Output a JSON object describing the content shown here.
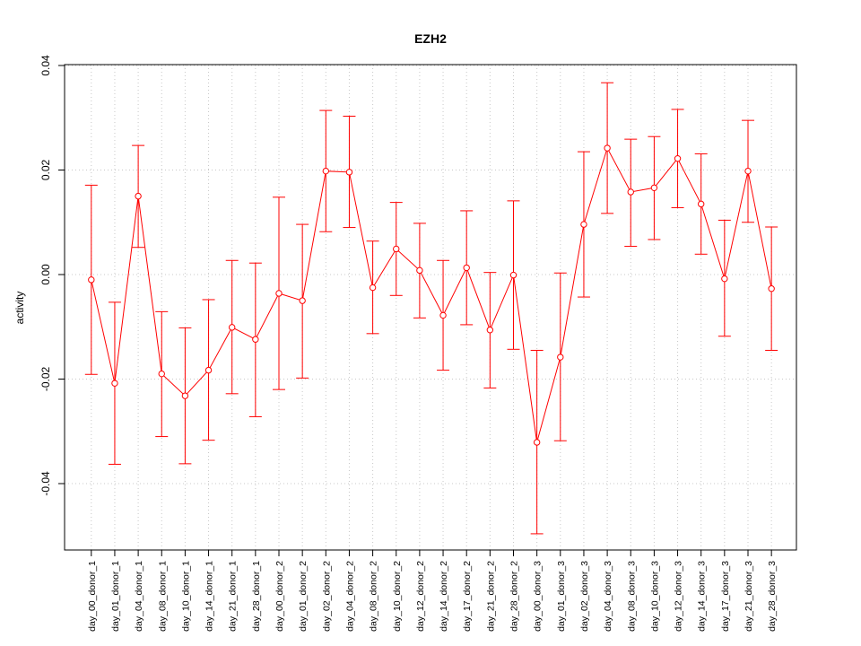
{
  "chart_data": {
    "type": "line",
    "title": "EZH2",
    "xlabel": "",
    "ylabel": "activity",
    "ylim": [
      -0.053,
      0.04
    ],
    "yticks": [
      -0.04,
      -0.02,
      0.0,
      0.02,
      0.04
    ],
    "ytick_labels": [
      "-0.04",
      "-0.02",
      "0.00",
      "0.02",
      "0.04"
    ],
    "grid": true,
    "color": "#ff0000",
    "grid_color": "#c8c8c8",
    "categories": [
      "day_00_donor_1",
      "day_01_donor_1",
      "day_04_donor_1",
      "day_08_donor_1",
      "day_10_donor_1",
      "day_14_donor_1",
      "day_21_donor_1",
      "day_28_donor_1",
      "day_00_donor_2",
      "day_01_donor_2",
      "day_02_donor_2",
      "day_04_donor_2",
      "day_08_donor_2",
      "day_10_donor_2",
      "day_12_donor_2",
      "day_14_donor_2",
      "day_17_donor_2",
      "day_21_donor_2",
      "day_28_donor_2",
      "day_00_donor_3",
      "day_01_donor_3",
      "day_02_donor_3",
      "day_04_donor_3",
      "day_08_donor_3",
      "day_10_donor_3",
      "day_12_donor_3",
      "day_14_donor_3",
      "day_17_donor_3",
      "day_21_donor_3",
      "day_28_donor_3"
    ],
    "values": [
      -0.001,
      -0.0208,
      0.015,
      -0.019,
      -0.0232,
      -0.0183,
      -0.0101,
      -0.0124,
      -0.0036,
      -0.005,
      0.0198,
      0.0196,
      -0.0025,
      0.0049,
      0.0008,
      -0.0078,
      0.0013,
      -0.0106,
      -0.0001,
      -0.0321,
      -0.0158,
      0.0096,
      0.0242,
      0.0158,
      0.0166,
      0.0222,
      0.0135,
      -0.0008,
      0.0198,
      -0.0027
    ],
    "upper": [
      0.0171,
      -0.0053,
      0.0247,
      -0.0071,
      -0.0102,
      -0.0048,
      0.0027,
      0.0022,
      0.0148,
      0.0096,
      0.0314,
      0.0303,
      0.0064,
      0.0138,
      0.0098,
      0.0027,
      0.0122,
      0.0004,
      0.0141,
      -0.0145,
      0.0003,
      0.0235,
      0.0367,
      0.0259,
      0.0264,
      0.0316,
      0.0231,
      0.0104,
      0.0295,
      0.0091
    ],
    "lower": [
      -0.0191,
      -0.0363,
      0.0052,
      -0.031,
      -0.0362,
      -0.0317,
      -0.0228,
      -0.0272,
      -0.022,
      -0.0198,
      0.0082,
      0.009,
      -0.0113,
      -0.004,
      -0.0083,
      -0.0183,
      -0.0096,
      -0.0217,
      -0.0143,
      -0.0496,
      -0.0318,
      -0.0043,
      0.0117,
      0.0054,
      0.0067,
      0.0128,
      0.0039,
      -0.0118,
      0.01,
      -0.0145
    ]
  }
}
